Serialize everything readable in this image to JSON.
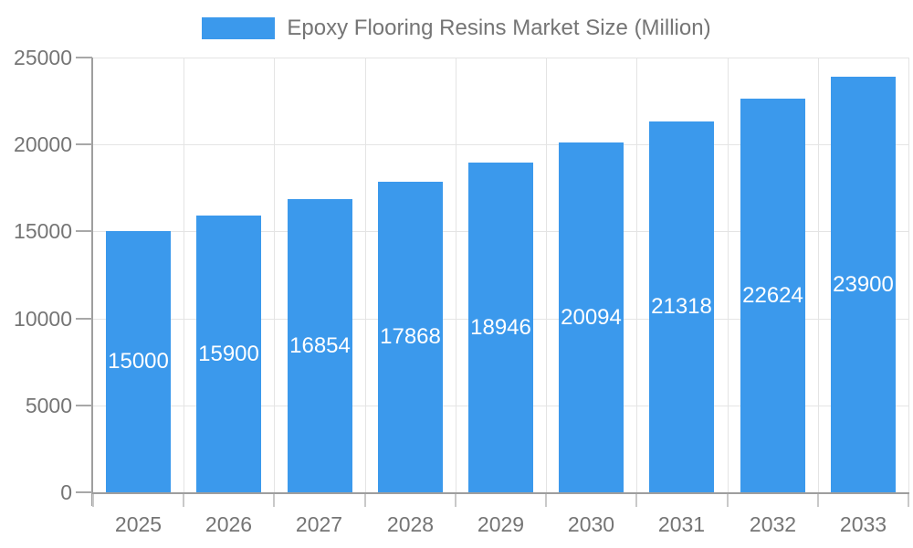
{
  "chart": {
    "legend_label": "Epoxy Flooring Resins Market Size (Million)"
  },
  "chart_data": {
    "type": "bar",
    "title": "Epoxy Flooring Resins Market Size (Million)",
    "legend": "Epoxy Flooring Resins Market Size (Million)",
    "legend_position": "top",
    "categories": [
      "2025",
      "2026",
      "2027",
      "2028",
      "2029",
      "2030",
      "2031",
      "2032",
      "2033"
    ],
    "values": [
      15000,
      15900,
      16854,
      17868,
      18946,
      20094,
      21318,
      22624,
      23900
    ],
    "value_labels": [
      "15000",
      "15900",
      "16854",
      "17868",
      "18946",
      "20094",
      "21318",
      "22624",
      "23900"
    ],
    "xlabel": "",
    "ylabel": "",
    "ylim": [
      0,
      25000
    ],
    "yticks": [
      0,
      5000,
      10000,
      15000,
      20000,
      25000
    ],
    "ytick_labels": [
      "0",
      "5000",
      "10000",
      "15000",
      "20000",
      "25000"
    ],
    "grid": true,
    "value_labels_inside_bars": true,
    "colors": {
      "bar": "#3B99EC",
      "grid": "#E4E4E4",
      "axis": "#9E9E9E",
      "y_tick_mark": "#A8A8A8",
      "x_tick_mark": "#C9C9C9",
      "tick_text": "#757575",
      "legend_text": "#757575",
      "bar_label_text": "#FFFFFF",
      "background": "#FFFFFF"
    }
  }
}
